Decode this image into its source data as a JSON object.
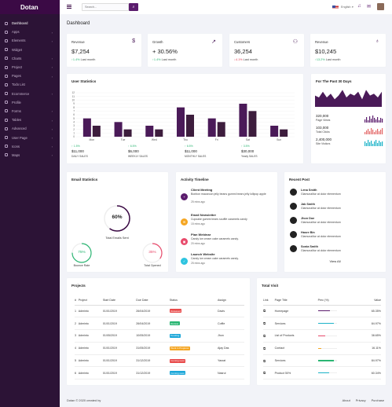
{
  "brand": "Dotan",
  "nav": [
    {
      "label": "Dashboard",
      "icon": "home-icon",
      "active": true,
      "chev": false
    },
    {
      "label": "Apps",
      "icon": "apps-icon",
      "chev": true
    },
    {
      "label": "Elements",
      "icon": "layers-icon",
      "chev": true
    },
    {
      "label": "Widget",
      "icon": "widget-icon",
      "chev": false
    },
    {
      "label": "Charts",
      "icon": "chart-icon",
      "chev": true
    },
    {
      "label": "Project",
      "icon": "project-icon",
      "chev": true
    },
    {
      "label": "Pages",
      "icon": "pages-icon",
      "chev": true
    },
    {
      "label": "Todo List",
      "icon": "checklist-icon",
      "chev": false
    },
    {
      "label": "Ecommerce",
      "icon": "cart-icon",
      "chev": true
    },
    {
      "label": "Profile",
      "icon": "user-icon",
      "chev": false
    },
    {
      "label": "Forms",
      "icon": "form-icon",
      "chev": true
    },
    {
      "label": "Tables",
      "icon": "table-icon",
      "chev": true
    },
    {
      "label": "Advanced",
      "icon": "advanced-icon",
      "chev": true
    },
    {
      "label": "User Page",
      "icon": "user-page-icon",
      "chev": true
    },
    {
      "label": "Icons",
      "icon": "icons-icon",
      "chev": true
    },
    {
      "label": "Maps",
      "icon": "map-icon",
      "chev": true
    }
  ],
  "topbar": {
    "search_placeholder": "Search...",
    "language": "English"
  },
  "page_title": "Dashboard",
  "stats": [
    {
      "title": "Revenue",
      "value": "$7,254",
      "change": "1.4%",
      "dir": "up",
      "period": "Last month",
      "icon": "dollar-icon"
    },
    {
      "title": "Growth",
      "value": "+ 30.56%",
      "change": "1.4%",
      "dir": "up",
      "period": "Last month",
      "icon": "trend-up-icon"
    },
    {
      "title": "Customers",
      "value": "36,254",
      "change": "4.1%",
      "dir": "down",
      "period": "Last month",
      "icon": "users-icon"
    },
    {
      "title": "Revenue",
      "value": "$10,245",
      "change": "13.2%",
      "dir": "up",
      "period": "Last month",
      "icon": "award-icon"
    }
  ],
  "user_stats": {
    "title": "User Statistics",
    "summary": [
      {
        "pct": "1.5%",
        "dir": "up",
        "value": "$11,000",
        "label": "DAILY SALES"
      },
      {
        "pct": "6.5%",
        "dir": "up",
        "value": "$6,000",
        "label": "WEEKLY SALES"
      },
      {
        "pct": "6.5%",
        "dir": "up",
        "value": "$11,000",
        "label": "MONTHLY SALES"
      },
      {
        "pct": "3.5%",
        "dir": "up",
        "value": "$30,000",
        "label": "Yearly SALES"
      }
    ]
  },
  "last30": {
    "title": "For The Past 30 Days",
    "rows": [
      {
        "value": "320,000",
        "label": "Page Views",
        "color": "#5b1c6d"
      },
      {
        "value": "103,000",
        "label": "Total Clicks",
        "color": "#e36a6a"
      },
      {
        "value": "2,400,000",
        "label": "Site Visitors",
        "color": "#1cb3c8"
      }
    ]
  },
  "email_stats": {
    "title": "Email Statistics",
    "main_pct": "60%",
    "main_label": "Total Emails Sent",
    "bounce_pct": "75%",
    "bounce_label": "Bounce Rate",
    "opened_pct": "35%",
    "opened_label": "Total Opened"
  },
  "timeline": {
    "title": "Activity Timeline",
    "items": [
      {
        "title": "Client Meeting",
        "body": "Bonbon macaroon jelly beans gummi bears jelly lollipop apple",
        "time": "25 mins ago",
        "color": "#5b1c6d",
        "icon": "plus-icon"
      },
      {
        "title": "Email Newsletter",
        "body": "Cupcake gummi bears soufflé caramels candy",
        "time": "15 mins ago",
        "color": "#f5a623",
        "icon": "mail-icon"
      },
      {
        "title": "Plan Webinar",
        "body": "Candy ice cream cake caramels candy.",
        "time": "20 mins ago",
        "color": "#e84a6b",
        "icon": "image-icon"
      },
      {
        "title": "Launch Website",
        "body": "Candy ice cream cake caramels candy.",
        "time": "25 mins ago",
        "color": "#2ec4e0",
        "icon": "check-icon"
      }
    ]
  },
  "recent_post": {
    "title": "Recent Post",
    "items": [
      {
        "name": "Lena Smith",
        "sub": "Glamunalitur at dolor elementum"
      },
      {
        "name": "Jak Smith",
        "sub": "Glamunalitur at dolor elementum"
      },
      {
        "name": "Jhon Doe",
        "sub": "Glamunalitur at dolor elementum"
      },
      {
        "name": "Hasre Bin",
        "sub": "Glamunalitur at dolor elementum"
      },
      {
        "name": "Sonia Smith",
        "sub": "Glamunalitur at dolor elementum"
      }
    ],
    "view_all": "View All"
  },
  "projects": {
    "title": "Projects",
    "headers": [
      "#",
      "Project",
      "Start Date",
      "Due Date",
      "Status",
      "Assign"
    ],
    "rows": [
      {
        "num": "1",
        "project": "Adminto",
        "start": "01/01/2019",
        "due": "26/04/2019",
        "status": "Released",
        "color": "#e84a4a",
        "assign": "Davis"
      },
      {
        "num": "2",
        "project": "Adminto",
        "start": "01/01/2019",
        "due": "26/04/2019",
        "status": "Review",
        "color": "#2bb673",
        "assign": "Coffie"
      },
      {
        "num": "3",
        "project": "Adminto",
        "start": "01/05/2019",
        "due": "10/05/2019",
        "status": "Pending",
        "color": "#1ca7d9",
        "assign": "Jhon"
      },
      {
        "num": "4",
        "project": "Adminto",
        "start": "01/01/2019",
        "due": "31/05/2019",
        "status": "Work in Progress",
        "color": "#f5a623",
        "assign": "Ajay Das"
      },
      {
        "num": "5",
        "project": "Adminto",
        "start": "01/01/2019",
        "due": "31/12/2019",
        "status": "Coming soon",
        "color": "#e84a4a",
        "assign": "Yasrat"
      },
      {
        "num": "6",
        "project": "Adminto",
        "start": "01/01/2019",
        "due": "31/12/2019",
        "status": "Coming soon",
        "color": "#1ca7d9",
        "assign": "Nasrul"
      }
    ]
  },
  "total_visit": {
    "title": "Total Visit",
    "headers": [
      "Link",
      "Page Title",
      "Perc (%)",
      "Value"
    ],
    "rows": [
      {
        "page": "Homepage",
        "pct": 65.35,
        "value": "65.35%",
        "color": "#5b1c6d"
      },
      {
        "page": "Services",
        "pct": 84.97,
        "value": "84.97%",
        "color": "#1cb3c8"
      },
      {
        "page": "List of Products",
        "pct": 38.65,
        "value": "38.65%",
        "color": "#e84a6b"
      },
      {
        "page": "Contact",
        "pct": 16.11,
        "value": "16.11%",
        "color": "#f5a623"
      },
      {
        "page": "Services",
        "pct": 84.97,
        "value": "84.97%",
        "color": "#2bb673"
      },
      {
        "page": "Product 50%",
        "pct": 60.34,
        "value": "60.34%",
        "color": "#1cb3c8"
      }
    ]
  },
  "footer": {
    "left": "Dotan © 2020 created by",
    "links": [
      "About",
      "Privacy",
      "Purchase"
    ]
  },
  "chart_data": [
    {
      "type": "bar",
      "title": "User Statistics",
      "categories": [
        "Mon",
        "Tue",
        "Wed",
        "Thu",
        "Fri",
        "Sat",
        "Sun"
      ],
      "series": [
        {
          "values": [
            5,
            4,
            3,
            8,
            5,
            9,
            3
          ],
          "color": "#4a1a58"
        },
        {
          "values": [
            3,
            2,
            2,
            6,
            4,
            7,
            2
          ],
          "color": "#3d1d3d"
        }
      ],
      "ylim": [
        0,
        12
      ],
      "yticks": [
        0,
        1,
        2,
        3,
        4,
        5,
        6,
        7,
        8,
        9,
        10,
        11,
        12
      ]
    },
    {
      "type": "area",
      "title": "For The Past 30 Days",
      "values": [
        6,
        5,
        8,
        5,
        7,
        4,
        6,
        9,
        5,
        7,
        6,
        8,
        4,
        9,
        6,
        7,
        5,
        8
      ],
      "color": "#4a1a58"
    }
  ]
}
